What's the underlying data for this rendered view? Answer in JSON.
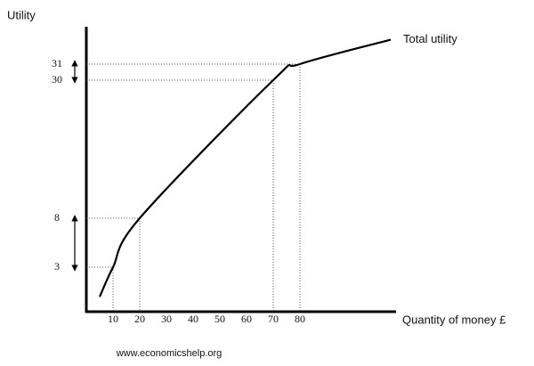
{
  "chart_data": {
    "type": "line",
    "y_label": "Utility",
    "x_label": "Quantity  of money £",
    "source": "www.economicshelp.org",
    "xlim": [
      0,
      116
    ],
    "xticks": [
      10,
      20,
      30,
      40,
      50,
      60,
      70,
      80
    ],
    "ylim": [
      0,
      33.3
    ],
    "yticks": [
      3,
      8,
      30,
      31
    ],
    "x": [
      5,
      10,
      20,
      70,
      80,
      114
    ],
    "series": [
      {
        "name": "Total utility",
        "color": "#000000",
        "values": [
          1,
          3,
          8,
          30,
          31,
          32.5
        ]
      }
    ]
  }
}
